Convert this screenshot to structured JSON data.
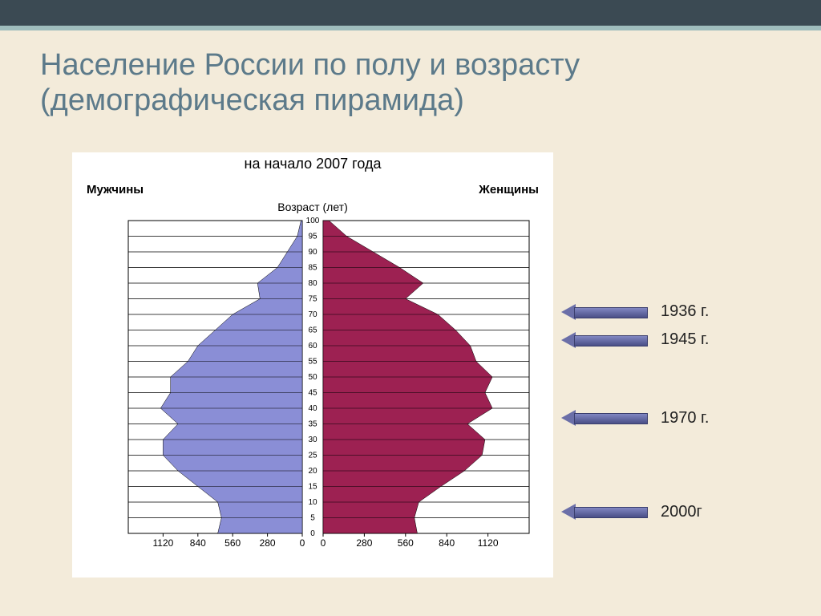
{
  "title": "Население России по полу и возрасту (демографическая пирамида)",
  "chart": {
    "type": "population-pyramid",
    "subtitle": "на начало 2007 года",
    "left_label": "Мужчины",
    "right_label": "Женщины",
    "age_label": "Возраст (лет)",
    "background_color": "#ffffff",
    "grid_color": "#000000",
    "male_color": "#8a8ed6",
    "female_color": "#9d2152",
    "age_min": 0,
    "age_max": 100,
    "age_tick_step": 5,
    "x_ticks": [
      1120,
      840,
      560,
      280,
      0
    ],
    "x_max": 1400,
    "male_values": [
      680,
      650,
      680,
      840,
      1000,
      1120,
      1120,
      1000,
      1140,
      1060,
      1060,
      920,
      840,
      700,
      560,
      340,
      360,
      200,
      120,
      40,
      10
    ],
    "female_values": [
      640,
      620,
      650,
      800,
      960,
      1080,
      1100,
      980,
      1150,
      1100,
      1150,
      1040,
      1000,
      900,
      780,
      560,
      680,
      520,
      340,
      160,
      40
    ]
  },
  "callouts": [
    {
      "label": "1936 г.",
      "age": 71
    },
    {
      "label": "1945 г.",
      "age": 62
    },
    {
      "label": "1970 г.",
      "age": 37
    },
    {
      "label": "2000г",
      "age": 7
    }
  ],
  "colors": {
    "slide_bg": "#f3ebda",
    "topbar": "#3b4a53",
    "topbar_accent": "#9fbdbd",
    "title": "#5c7a8a",
    "arrow_fill": "#6b6fa8"
  }
}
